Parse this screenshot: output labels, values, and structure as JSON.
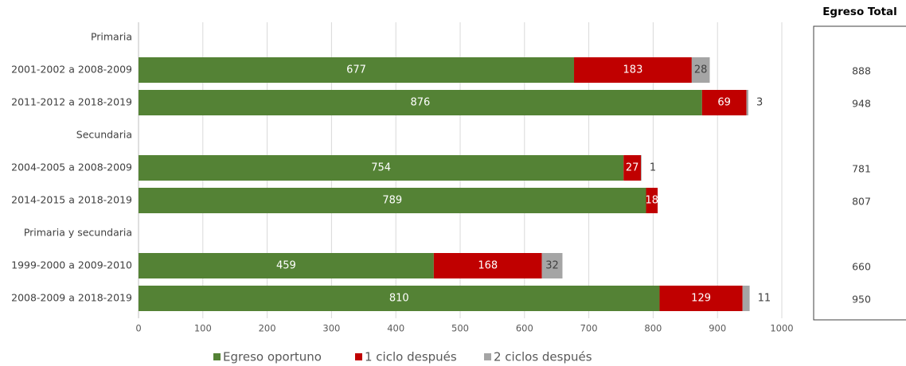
{
  "chart_data": {
    "type": "stacked-barh",
    "categories": [
      "Primaria",
      "2001-2002 a 2008-2009",
      "2011-2012 a 2018-2019",
      "Secundaria",
      "2004-2005 a 2008-2009",
      "2014-2015 a 2018-2019",
      "Primaria y secundaria",
      "1999-2000 a 2009-2010",
      "2008-2009 a 2018-2019"
    ],
    "series": [
      {
        "name": "Egreso oportuno",
        "color": "#548235",
        "values": [
          null,
          677,
          876,
          null,
          754,
          789,
          null,
          459,
          810
        ]
      },
      {
        "name": "1 ciclo después",
        "color": "#c00000",
        "values": [
          null,
          183,
          69,
          null,
          27,
          18,
          null,
          168,
          129
        ]
      },
      {
        "name": "2 ciclos después",
        "color": "#a5a5a5",
        "values": [
          null,
          28,
          3,
          null,
          1,
          null,
          null,
          32,
          11
        ]
      }
    ],
    "xlim": [
      0,
      1000
    ],
    "xticks": [
      0,
      100,
      200,
      300,
      400,
      500,
      600,
      700,
      800,
      900,
      1000
    ],
    "grid": true,
    "legend": "bottom",
    "totals": {
      "title": "Egreso Total",
      "values": [
        null,
        888,
        948,
        null,
        781,
        807,
        null,
        660,
        950
      ]
    }
  }
}
